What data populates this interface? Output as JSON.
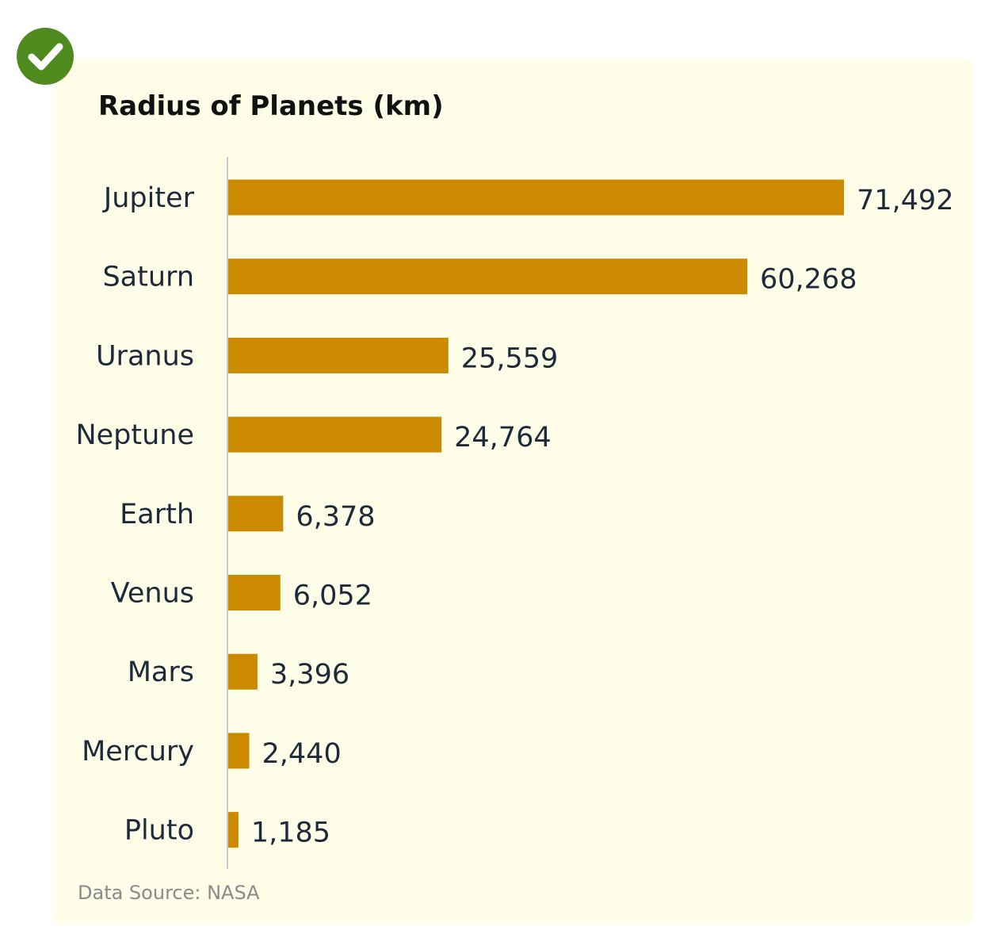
{
  "badge": {
    "icon": "checkmark-icon",
    "color": "#4f8a1f"
  },
  "colors": {
    "background": "#fdfde8",
    "bar": "#cc8a00",
    "label": "#1e2a3a",
    "axis": "#cccccc"
  },
  "chart_data": {
    "type": "bar",
    "orientation": "horizontal",
    "title": "Radius of Planets (km)",
    "categories": [
      "Jupiter",
      "Saturn",
      "Uranus",
      "Neptune",
      "Earth",
      "Venus",
      "Mars",
      "Mercury",
      "Pluto"
    ],
    "values": [
      71492,
      60268,
      25559,
      24764,
      6378,
      6052,
      3396,
      2440,
      1185
    ],
    "value_labels": [
      "71,492",
      "60,268",
      "25,559",
      "24,764",
      "6,378",
      "6,052",
      "3,396",
      "2,440",
      "1,185"
    ],
    "xlabel": "",
    "ylabel": "",
    "xlim": [
      0,
      71492
    ],
    "grid": false,
    "legend": "none"
  },
  "footer": {
    "source": "Data Source: NASA"
  }
}
